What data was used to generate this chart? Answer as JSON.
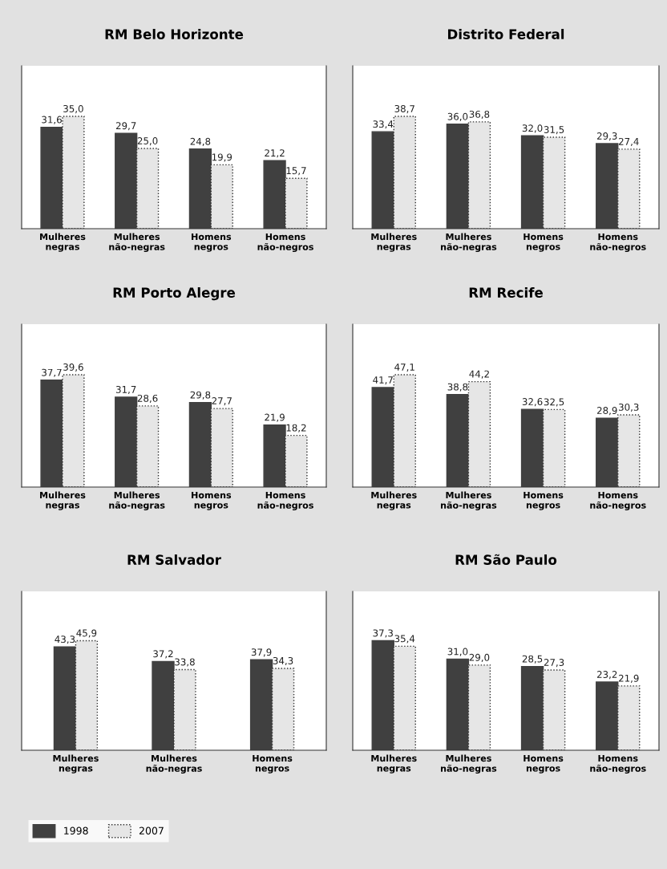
{
  "chart_data": [
    {
      "type": "bar",
      "title": "RM Belo Horizonte",
      "categories": [
        "Mulheres\nnegras",
        "Mulheres\nnão-negras",
        "Homens\nnegros",
        "Homens\nnão-negros"
      ],
      "legend": "bottom left",
      "series": [
        {
          "name": "1998",
          "color": "#404040",
          "values": [
            31.6,
            29.7,
            24.8,
            21.2
          ],
          "value_labels": [
            "31,6",
            "29,7",
            "24,8",
            "21,2"
          ]
        },
        {
          "name": "2007",
          "color": "#e6e6e6",
          "values": [
            35.0,
            25.0,
            19.9,
            15.7
          ],
          "value_labels": [
            "35,0",
            "25,0",
            "19,9",
            "15,7"
          ]
        }
      ]
    },
    {
      "type": "bar",
      "title": "Distrito Federal",
      "categories": [
        "Mulheres\nnegras",
        "Mulheres\nnão-negras",
        "Homens\nnegros",
        "Homens\nnão-negros"
      ],
      "series": [
        {
          "name": "1998",
          "color": "#404040",
          "values": [
            33.4,
            36.0,
            32.0,
            29.3
          ],
          "value_labels": [
            "33,4",
            "36,0",
            "32,0",
            "29,3"
          ]
        },
        {
          "name": "2007",
          "color": "#e6e6e6",
          "values": [
            38.7,
            36.8,
            31.5,
            27.4
          ],
          "value_labels": [
            "38,7",
            "36,8",
            "31,5",
            "27,4"
          ]
        }
      ]
    },
    {
      "type": "bar",
      "title": "RM Porto Alegre",
      "categories": [
        "Mulheres\nnegras",
        "Mulheres\nnão-negras",
        "Homens\nnegros",
        "Homens\nnão-negros"
      ],
      "series": [
        {
          "name": "1998",
          "color": "#404040",
          "values": [
            37.7,
            31.7,
            29.8,
            21.9
          ],
          "value_labels": [
            "37,7",
            "31,7",
            "29,8",
            "21,9"
          ]
        },
        {
          "name": "2007",
          "color": "#e6e6e6",
          "values": [
            39.6,
            28.6,
            27.7,
            18.2
          ],
          "value_labels": [
            "39,6",
            "28,6",
            "27,7",
            "18,2"
          ]
        }
      ]
    },
    {
      "type": "bar",
      "title": "RM Recife",
      "categories": [
        "Mulheres\nnegras",
        "Mulheres\nnão-negras",
        "Homens\nnegros",
        "Homens\nnão-negros"
      ],
      "series": [
        {
          "name": "1998",
          "color": "#404040",
          "values": [
            41.7,
            38.8,
            32.6,
            28.9
          ],
          "value_labels": [
            "41,7",
            "38,8",
            "32,6",
            "28,9"
          ]
        },
        {
          "name": "2007",
          "color": "#e6e6e6",
          "values": [
            47.1,
            44.2,
            32.5,
            30.3
          ],
          "value_labels": [
            "47,1",
            "44,2",
            "32,5",
            "30,3"
          ]
        }
      ]
    },
    {
      "type": "bar",
      "title": "RM Salvador",
      "categories": [
        "Mulheres\nnegras",
        "Mulheres\nnão-negras",
        "Homens\nnegros"
      ],
      "series": [
        {
          "name": "1998",
          "color": "#404040",
          "values": [
            43.3,
            37.2,
            37.9
          ],
          "value_labels": [
            "43,3",
            "37,2",
            "37,9"
          ]
        },
        {
          "name": "2007",
          "color": "#e6e6e6",
          "values": [
            45.9,
            33.8,
            34.3
          ],
          "value_labels": [
            "45,9",
            "33,8",
            "34,3"
          ]
        }
      ]
    },
    {
      "type": "bar",
      "title": "RM São Paulo",
      "categories": [
        "Mulheres\nnegras",
        "Mulheres\nnão-negras",
        "Homens\nnegros",
        "Homens\nnão-negros"
      ],
      "series": [
        {
          "name": "1998",
          "color": "#404040",
          "values": [
            37.3,
            31.0,
            28.5,
            23.2
          ],
          "value_labels": [
            "37,3",
            "31,0",
            "28,5",
            "23,2"
          ]
        },
        {
          "name": "2007",
          "color": "#e6e6e6",
          "values": [
            35.4,
            29.0,
            27.3,
            21.9
          ],
          "value_labels": [
            "35,4",
            "29,0",
            "27,3",
            "21,9"
          ]
        }
      ]
    }
  ]
}
